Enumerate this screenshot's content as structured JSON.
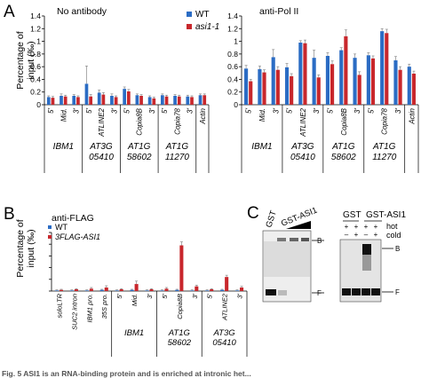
{
  "panel_labels": {
    "a": "A",
    "b": "B",
    "c": "C"
  },
  "colors": {
    "blue": "#2b6cc4",
    "red": "#c8272c"
  },
  "ylabel_a": [
    "Percentage of",
    "input (‰)"
  ],
  "ylabel_b": [
    "Percentage of",
    "input (‰)"
  ],
  "caption_fragment": "Fig. 5 ASI1 is an RNA-binding protein and is enriched at intronic het...",
  "chart_data": [
    {
      "type": "bar",
      "title": "No antibody",
      "ylim": [
        0,
        1.4
      ],
      "yticks": [
        "0",
        "0.2",
        "0.4",
        "0.6",
        "0.8",
        "1",
        "1.2",
        "1.4"
      ],
      "categories": [
        "5'",
        "Mid.",
        "3'",
        "5'",
        "ATLINE2",
        "3'",
        "5'",
        "Copia8B",
        "3'",
        "5'",
        "Copia78",
        "3'",
        "Actin"
      ],
      "groups": [
        {
          "name": "IBM1",
          "span": [
            0,
            2
          ]
        },
        {
          "name": "AT3G\n05410",
          "span": [
            3,
            5
          ]
        },
        {
          "name": "AT1G\n58602",
          "span": [
            6,
            8
          ]
        },
        {
          "name": "AT1G\n11270",
          "span": [
            9,
            11
          ]
        }
      ],
      "series": [
        {
          "name": "WT",
          "values": [
            0.12,
            0.14,
            0.14,
            0.33,
            0.19,
            0.14,
            0.25,
            0.15,
            0.12,
            0.15,
            0.14,
            0.13,
            0.15
          ],
          "err": [
            0.02,
            0.03,
            0.02,
            0.28,
            0.04,
            0.03,
            0.03,
            0.02,
            0.02,
            0.02,
            0.02,
            0.02,
            0.02
          ]
        },
        {
          "name": "asi1-1",
          "values": [
            0.11,
            0.13,
            0.12,
            0.13,
            0.16,
            0.12,
            0.21,
            0.14,
            0.1,
            0.13,
            0.13,
            0.12,
            0.15
          ],
          "err": [
            0.02,
            0.02,
            0.02,
            0.03,
            0.03,
            0.02,
            0.03,
            0.02,
            0.02,
            0.02,
            0.02,
            0.02,
            0.02
          ]
        }
      ],
      "legend": [
        "WT",
        "asi1-1"
      ]
    },
    {
      "type": "bar",
      "title": "anti-Pol II",
      "ylim": [
        0,
        1.4
      ],
      "yticks": [
        "0",
        "0.2",
        "0.4",
        "0.6",
        "0.8",
        "1",
        "1.2",
        "1.4"
      ],
      "categories": [
        "5'",
        "Mid.",
        "3'",
        "5'",
        "ATLINE2",
        "3'",
        "5'",
        "Copia8B",
        "3'",
        "5'",
        "Copia78",
        "3'",
        "Actin"
      ],
      "groups": [
        {
          "name": "IBM1",
          "span": [
            0,
            2
          ]
        },
        {
          "name": "AT3G\n05410",
          "span": [
            3,
            5
          ]
        },
        {
          "name": "AT1G\n58602",
          "span": [
            6,
            8
          ]
        },
        {
          "name": "AT1G\n11270",
          "span": [
            9,
            11
          ]
        }
      ],
      "series": [
        {
          "name": "WT",
          "values": [
            0.57,
            0.56,
            0.75,
            0.59,
            0.98,
            0.74,
            0.77,
            0.86,
            0.74,
            0.78,
            1.16,
            0.7,
            0.6
          ],
          "err": [
            0.05,
            0.05,
            0.12,
            0.06,
            0.03,
            0.12,
            0.05,
            0.04,
            0.06,
            0.04,
            0.04,
            0.06,
            0.04
          ]
        },
        {
          "name": "asi1-1",
          "values": [
            0.37,
            0.51,
            0.55,
            0.45,
            0.97,
            0.43,
            0.64,
            1.08,
            0.47,
            0.73,
            1.13,
            0.55,
            0.49
          ],
          "err": [
            0.03,
            0.04,
            0.05,
            0.04,
            0.05,
            0.04,
            0.05,
            0.1,
            0.05,
            0.04,
            0.06,
            0.05,
            0.04
          ]
        }
      ]
    },
    {
      "type": "bar",
      "title": "anti-FLAG",
      "ylim": [
        0,
        1
      ],
      "yticks": [
        "0",
        "0.2",
        "0.4",
        "0.6",
        "0.8",
        "1"
      ],
      "categories": [
        "soloLTR",
        "SUC2 intron",
        "IBM1 pro.",
        "35S pro.",
        "5'",
        "Mid.",
        "3'",
        "5'",
        "Copia8B",
        "3'",
        "5'",
        "ATLINE2",
        "3'"
      ],
      "groups": [
        {
          "name": "IBM1",
          "span": [
            4,
            6
          ]
        },
        {
          "name": "AT1G\n58602",
          "span": [
            7,
            9
          ]
        },
        {
          "name": "AT3G\n05410",
          "span": [
            10,
            12
          ]
        }
      ],
      "series": [
        {
          "name": "WT",
          "values": [
            0.01,
            0.01,
            0.01,
            0.02,
            0.01,
            0.02,
            0.01,
            0.01,
            0.02,
            0.01,
            0.01,
            0.02,
            0.01
          ],
          "err": [
            0.01,
            0.01,
            0.01,
            0.01,
            0.01,
            0.01,
            0.01,
            0.01,
            0.01,
            0.01,
            0.01,
            0.01,
            0.01
          ]
        },
        {
          "name": "3FLAG-ASI1",
          "values": [
            0.02,
            0.03,
            0.04,
            0.06,
            0.03,
            0.12,
            0.03,
            0.04,
            0.78,
            0.08,
            0.03,
            0.24,
            0.06
          ],
          "err": [
            0.01,
            0.01,
            0.02,
            0.03,
            0.01,
            0.05,
            0.01,
            0.02,
            0.06,
            0.02,
            0.01,
            0.03,
            0.02
          ]
        }
      ],
      "legend": [
        "WT",
        "3FLAG-ASI1"
      ]
    }
  ],
  "gel1": {
    "lanes": [
      "GST",
      "GST-ASI1"
    ],
    "band_top": "B",
    "band_bottom": "F"
  },
  "gel2": {
    "lanes": [
      "GST",
      "GST-ASI1"
    ],
    "row_labels": [
      "hot",
      "cold"
    ],
    "hot": [
      "+",
      "+",
      "+",
      "+"
    ],
    "cold": [
      "–",
      "+",
      "–",
      "+"
    ],
    "band_top": "B",
    "band_bottom": "F"
  }
}
